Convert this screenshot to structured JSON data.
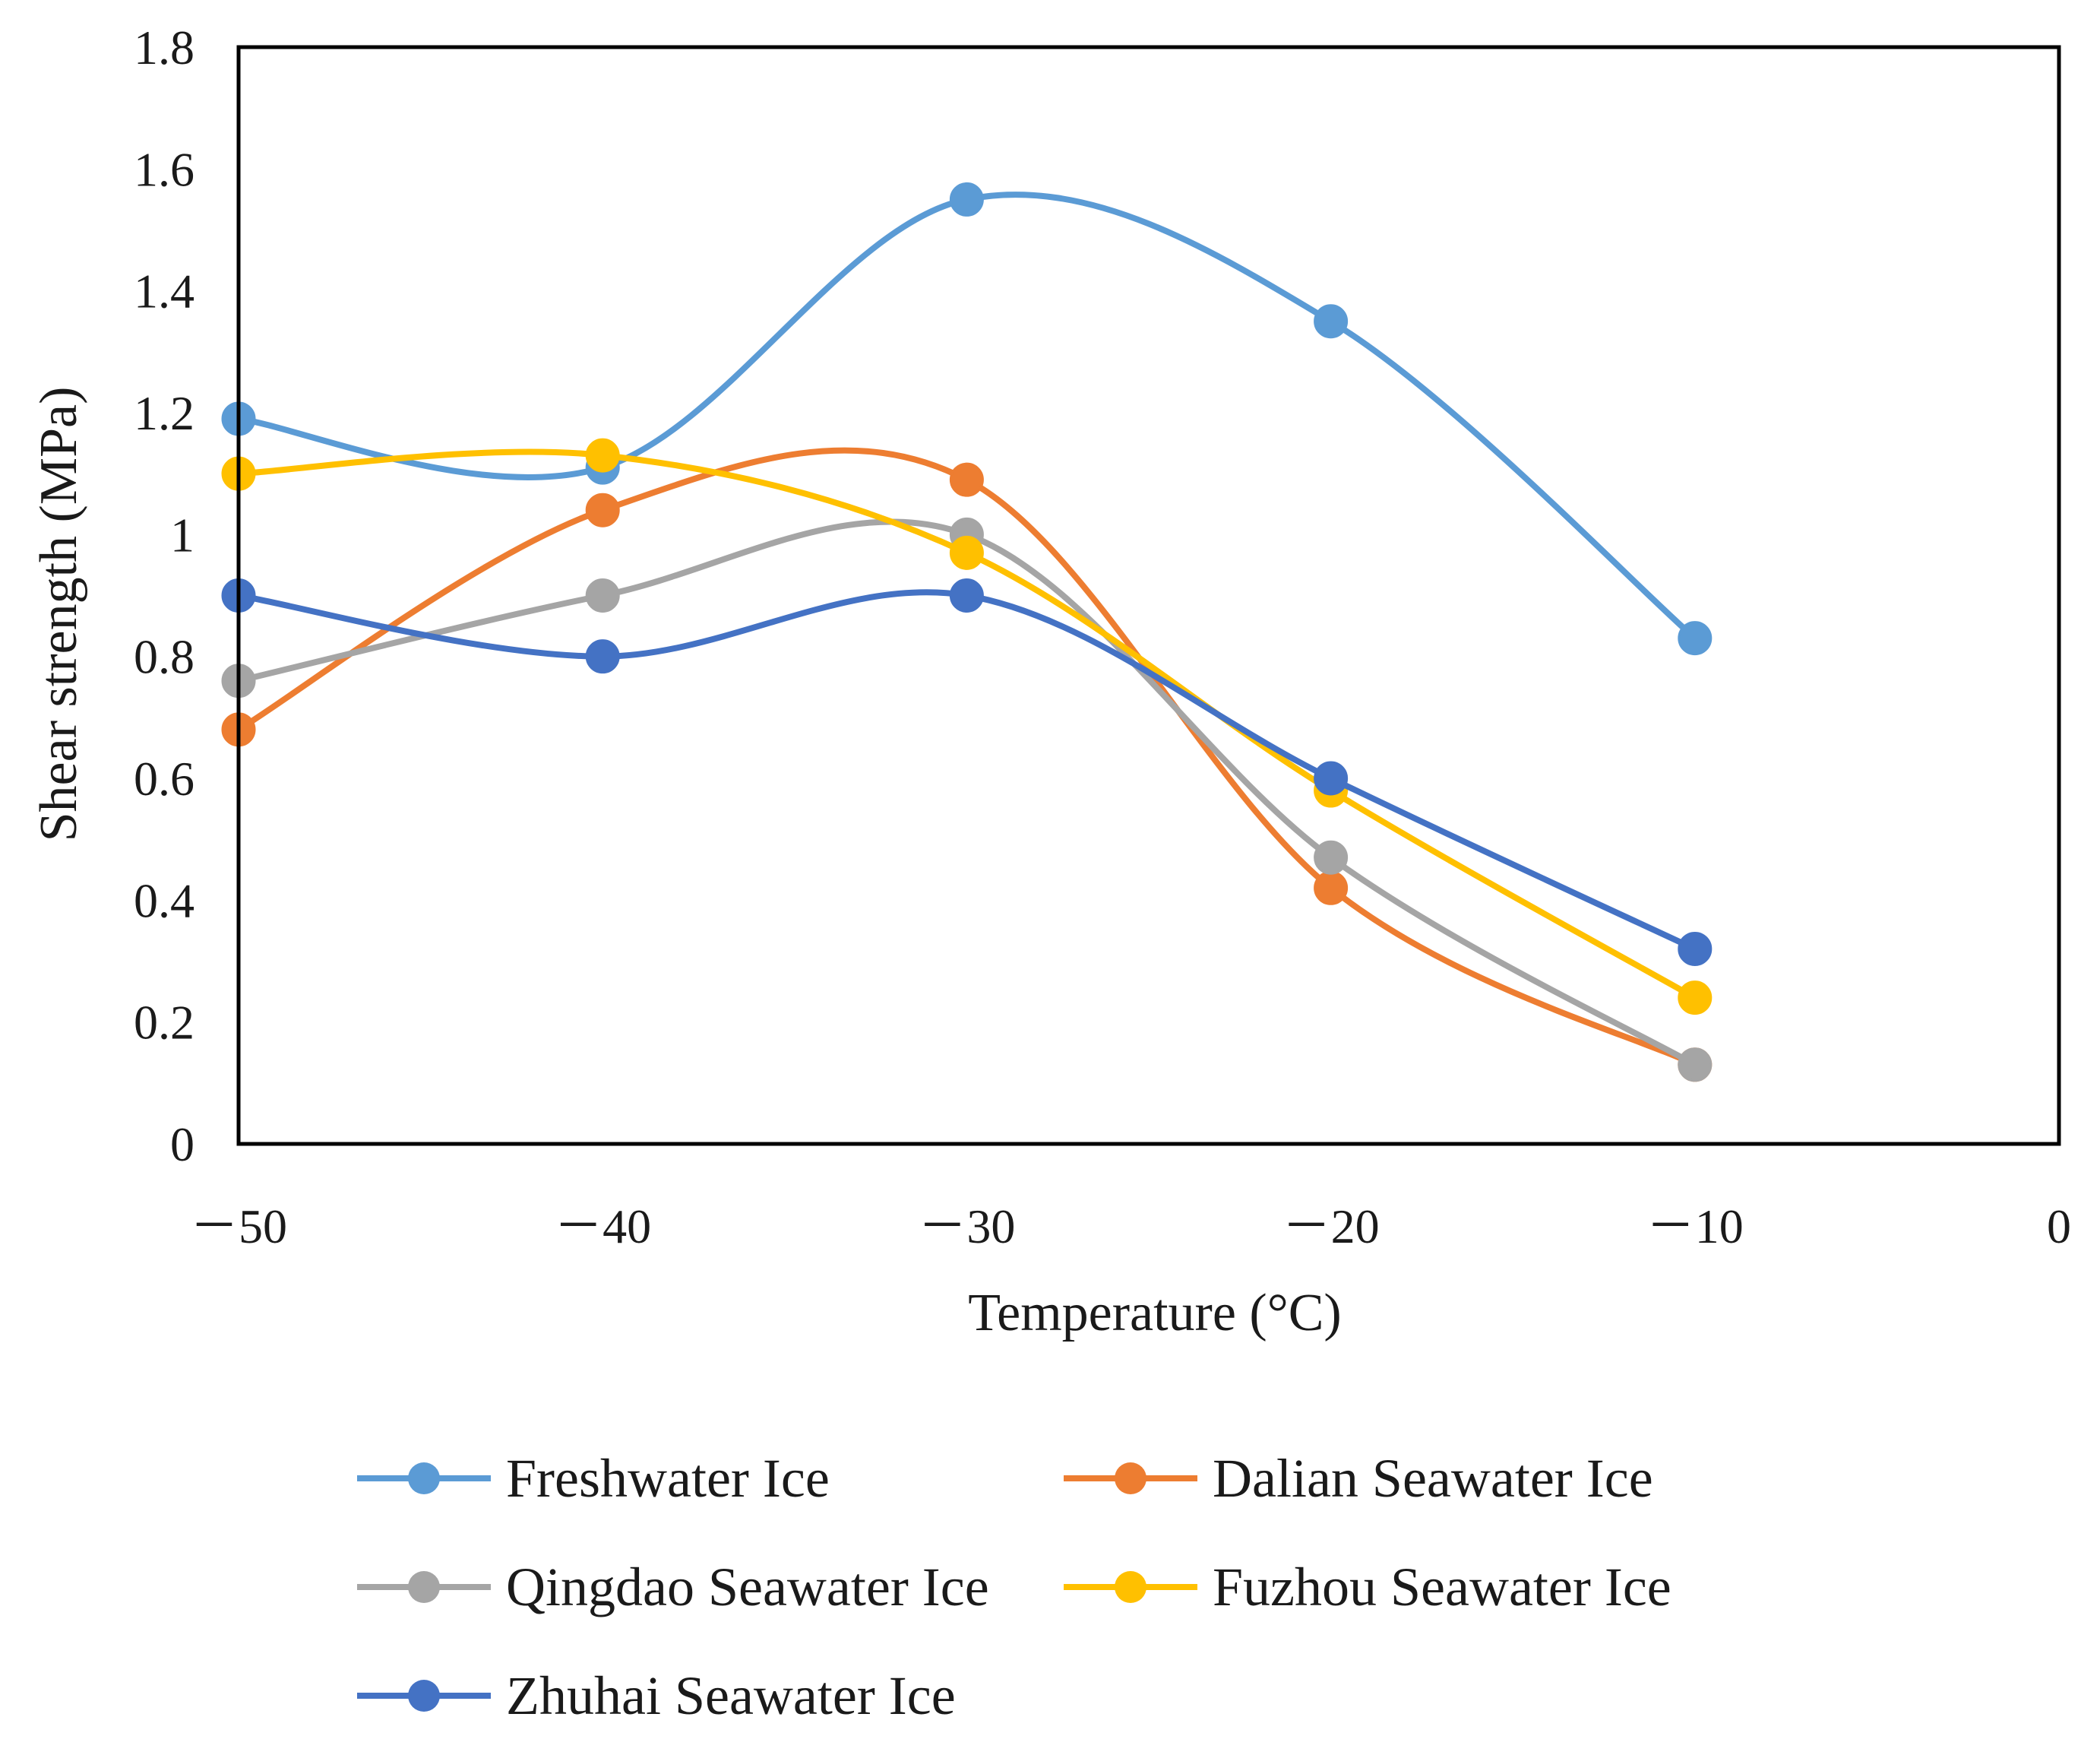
{
  "chart_data": {
    "type": "line",
    "smooth": true,
    "xlabel": "Temperature (°C)",
    "ylabel": "Shear strength (MPa)",
    "xlim": [
      -50,
      0
    ],
    "ylim": [
      0,
      1.8
    ],
    "x_ticks": [
      -50,
      -40,
      -30,
      -20,
      -10,
      0
    ],
    "x_tick_labels": [
      "－50",
      "－40",
      "－30",
      "－20",
      "－10",
      "0"
    ],
    "y_ticks": [
      0,
      0.2,
      0.4,
      0.6,
      0.8,
      1,
      1.2,
      1.4,
      1.6,
      1.8
    ],
    "y_tick_labels": [
      "0",
      "0.2",
      "0.4",
      "0.6",
      "0.8",
      "1",
      "1.2",
      "1.4",
      "1.6",
      "1.8"
    ],
    "grid": false,
    "legend_position": "bottom",
    "x": [
      -50,
      -40,
      -30,
      -20,
      -10
    ],
    "series": [
      {
        "name": "Freshwater Ice",
        "color": "#5B9BD5",
        "values": [
          1.19,
          1.11,
          1.55,
          1.35,
          0.83
        ]
      },
      {
        "name": "Dalian Seawater Ice",
        "color": "#ED7D31",
        "values": [
          0.68,
          1.04,
          1.09,
          0.42,
          0.13
        ]
      },
      {
        "name": "Qingdao Seawater Ice",
        "color": "#A5A5A5",
        "values": [
          0.76,
          0.9,
          1.0,
          0.47,
          0.13
        ]
      },
      {
        "name": "Fuzhou Seawater Ice",
        "color": "#FFC000",
        "values": [
          1.1,
          1.13,
          0.97,
          0.58,
          0.24
        ]
      },
      {
        "name": "Zhuhai Seawater Ice",
        "color": "#4472C4",
        "values": [
          0.9,
          0.8,
          0.9,
          0.6,
          0.32
        ]
      }
    ]
  }
}
